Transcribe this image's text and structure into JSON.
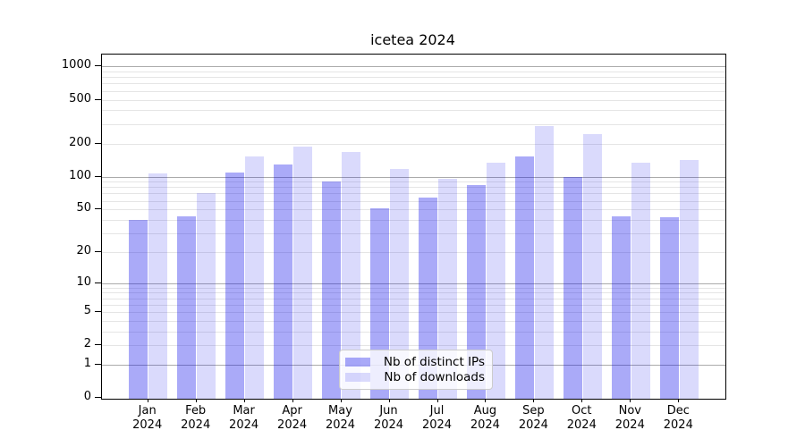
{
  "chart_data": {
    "type": "bar",
    "title": "icetea 2024",
    "categories": [
      "Jan 2024",
      "Feb 2024",
      "Mar 2024",
      "Apr 2024",
      "May 2024",
      "Jun 2024",
      "Jul 2024",
      "Aug 2024",
      "Sep 2024",
      "Oct 2024",
      "Nov 2024",
      "Dec 2024"
    ],
    "series": [
      {
        "name": "Nb of distinct IPs",
        "color": "#0a0aeb",
        "alpha": 0.345,
        "values": [
          40,
          43,
          108,
          130,
          91,
          51,
          64,
          84,
          154,
          100,
          43,
          42
        ]
      },
      {
        "name": "Nb of downloads",
        "color": "#0a0aeb",
        "alpha": 0.152,
        "values": [
          107,
          70,
          152,
          188,
          168,
          117,
          96,
          133,
          291,
          245,
          135,
          141
        ]
      }
    ],
    "xlabel": "",
    "ylabel": "",
    "yscale": "log1p",
    "yticks": [
      0,
      1,
      2,
      5,
      10,
      20,
      50,
      100,
      200,
      500,
      1000
    ],
    "ylim": [
      0,
      1280
    ],
    "grid": true,
    "legend_position": "lower center",
    "colors": {
      "major_grid": "#ababab",
      "minor_grid": "#e5e5e5",
      "spine": "#000000",
      "text": "#000000"
    }
  }
}
